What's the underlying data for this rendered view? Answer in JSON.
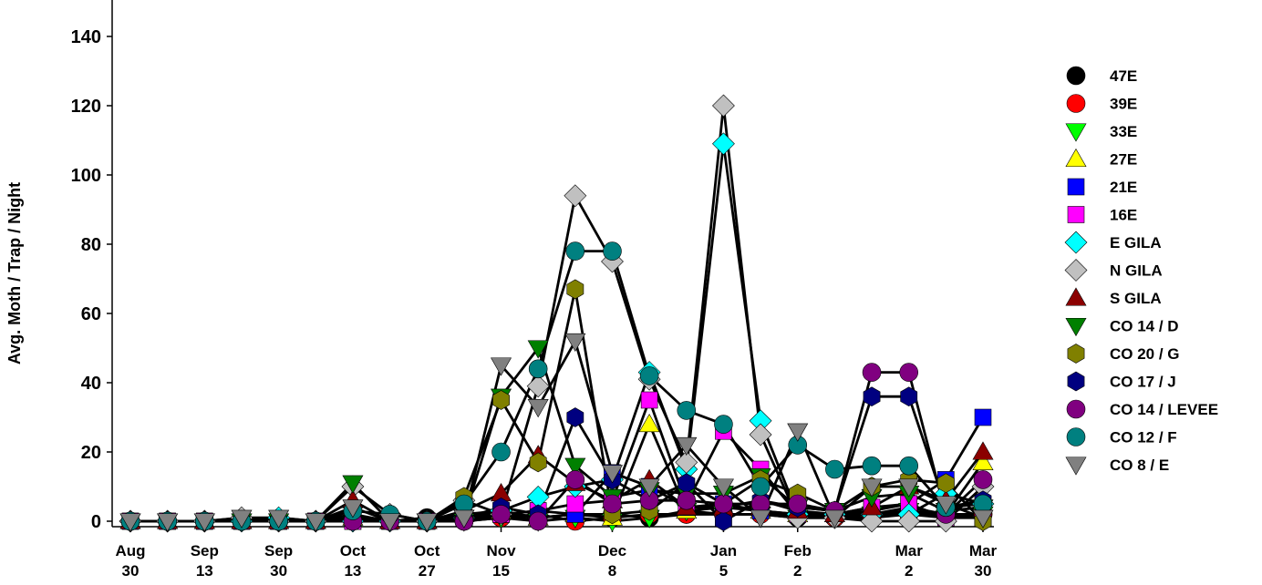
{
  "chart_data": {
    "type": "line",
    "title": "",
    "xlabel": "",
    "ylabel": "Avg. Moth / Trap / Night",
    "ylim": [
      0,
      150
    ],
    "yticks": [
      0,
      20,
      40,
      60,
      80,
      100,
      120,
      140
    ],
    "grid": false,
    "legend_position": "right",
    "x_tick_labels": [
      {
        "line1": "Aug",
        "line2": "30"
      },
      {
        "line1": "Sep",
        "line2": "13"
      },
      {
        "line1": "Sep",
        "line2": "30"
      },
      {
        "line1": "Oct",
        "line2": "13"
      },
      {
        "line1": "Oct",
        "line2": "27"
      },
      {
        "line1": "Nov",
        "line2": "15"
      },
      {
        "line1": "Dec",
        "line2": "8"
      },
      {
        "line1": "Jan",
        "line2": "5"
      },
      {
        "line1": "Feb",
        "line2": "2"
      },
      {
        "line1": "Mar",
        "line2": "2"
      },
      {
        "line1": "Mar",
        "line2": "30"
      }
    ],
    "x_tick_sample_index": [
      0,
      2,
      4,
      6,
      8,
      10,
      13,
      16,
      18,
      21,
      23
    ],
    "n_samples": 24,
    "series": [
      {
        "name": "47E",
        "color": "#000000",
        "marker": "circle",
        "values": [
          0,
          0,
          0,
          0,
          0,
          0,
          1,
          0,
          1,
          1,
          2,
          1,
          2,
          2,
          1,
          2,
          2,
          2,
          1,
          1,
          2,
          3,
          2,
          2
        ]
      },
      {
        "name": "39E",
        "color": "#ff0000",
        "marker": "circle",
        "values": [
          0,
          0,
          0,
          0,
          0,
          0,
          0,
          0,
          0,
          0,
          1,
          2,
          0,
          1,
          2,
          2,
          2,
          2,
          2,
          1,
          1,
          2,
          1,
          2
        ]
      },
      {
        "name": "33E",
        "color": "#00ff00",
        "marker": "triangle-down",
        "values": [
          0,
          0,
          0,
          0,
          0,
          0,
          1,
          0,
          0,
          0,
          1,
          0,
          1,
          0,
          1,
          3,
          2,
          2,
          1,
          2,
          2,
          3,
          1,
          2
        ]
      },
      {
        "name": "27E",
        "color": "#ffff00",
        "marker": "triangle-up",
        "values": [
          0,
          0,
          0,
          0,
          0,
          0,
          1,
          0,
          0,
          2,
          3,
          1,
          2,
          1,
          28,
          3,
          4,
          3,
          2,
          2,
          2,
          4,
          2,
          17
        ]
      },
      {
        "name": "21E",
        "color": "#0000ff",
        "marker": "square",
        "values": [
          0,
          0,
          0,
          0,
          0,
          0,
          0,
          0,
          0,
          1,
          2,
          3,
          2,
          14,
          10,
          4,
          5,
          3,
          2,
          2,
          3,
          5,
          12,
          30
        ]
      },
      {
        "name": "16E",
        "color": "#ff00ff",
        "marker": "square",
        "values": [
          0,
          0,
          0,
          0,
          0,
          0,
          0,
          0,
          0,
          1,
          2,
          3,
          5,
          6,
          35,
          5,
          26,
          15,
          2,
          2,
          4,
          5,
          1,
          1
        ]
      },
      {
        "name": "E GILA",
        "color": "#00ffff",
        "marker": "diamond",
        "values": [
          0,
          0,
          0,
          0,
          1,
          0,
          0,
          0,
          0,
          1,
          3,
          7,
          10,
          12,
          43,
          15,
          109,
          29,
          2,
          2,
          2,
          2,
          8,
          5
        ]
      },
      {
        "name": "N GILA",
        "color": "#c0c0c0",
        "marker": "diamond",
        "values": [
          0,
          0,
          0,
          1,
          0,
          0,
          10,
          2,
          0,
          6,
          2,
          39,
          94,
          75,
          41,
          17,
          120,
          25,
          1,
          1,
          0,
          0,
          0,
          10
        ]
      },
      {
        "name": "S GILA",
        "color": "#8b0000",
        "marker": "triangle-up",
        "values": [
          0,
          0,
          0,
          0,
          0,
          0,
          6,
          0,
          0,
          3,
          8,
          19,
          11,
          6,
          12,
          4,
          4,
          6,
          3,
          2,
          4,
          10,
          6,
          20
        ]
      },
      {
        "name": "CO 14 / D",
        "color": "#008000",
        "marker": "triangle-down",
        "values": [
          0,
          0,
          0,
          0,
          0,
          0,
          11,
          0,
          0,
          1,
          36,
          50,
          16,
          7,
          9,
          8,
          8,
          13,
          4,
          3,
          7,
          8,
          3,
          4
        ]
      },
      {
        "name": "CO 20 / G",
        "color": "#808000",
        "marker": "hexagon",
        "values": [
          0,
          0,
          0,
          0,
          0,
          0,
          2,
          0,
          0,
          7,
          35,
          17,
          67,
          2,
          3,
          11,
          5,
          12,
          8,
          3,
          10,
          12,
          11,
          0
        ]
      },
      {
        "name": "CO 17 / J",
        "color": "#000080",
        "marker": "hexagon",
        "values": [
          0,
          0,
          0,
          0,
          0,
          0,
          0,
          0,
          0,
          1,
          4,
          2,
          30,
          12,
          6,
          11,
          0,
          6,
          4,
          3,
          36,
          36,
          4,
          6
        ]
      },
      {
        "name": "CO 14 / LEVEE",
        "color": "#800080",
        "marker": "circle",
        "values": [
          0,
          0,
          0,
          0,
          0,
          0,
          0,
          0,
          0,
          0,
          2,
          0,
          12,
          5,
          6,
          6,
          5,
          5,
          5,
          3,
          43,
          43,
          2,
          12
        ]
      },
      {
        "name": "CO 12 / F",
        "color": "#008080",
        "marker": "circle",
        "values": [
          0,
          0,
          0,
          0,
          0,
          0,
          3,
          2,
          0,
          5,
          20,
          44,
          78,
          78,
          42,
          32,
          28,
          10,
          22,
          15,
          16,
          16,
          4,
          5
        ]
      },
      {
        "name": "CO 8 / E",
        "color": "#808080",
        "marker": "triangle-down",
        "values": [
          0,
          0,
          0,
          1,
          1,
          0,
          4,
          0,
          0,
          1,
          45,
          33,
          52,
          14,
          10,
          22,
          10,
          1,
          26,
          1,
          10,
          10,
          5,
          1
        ]
      }
    ]
  }
}
